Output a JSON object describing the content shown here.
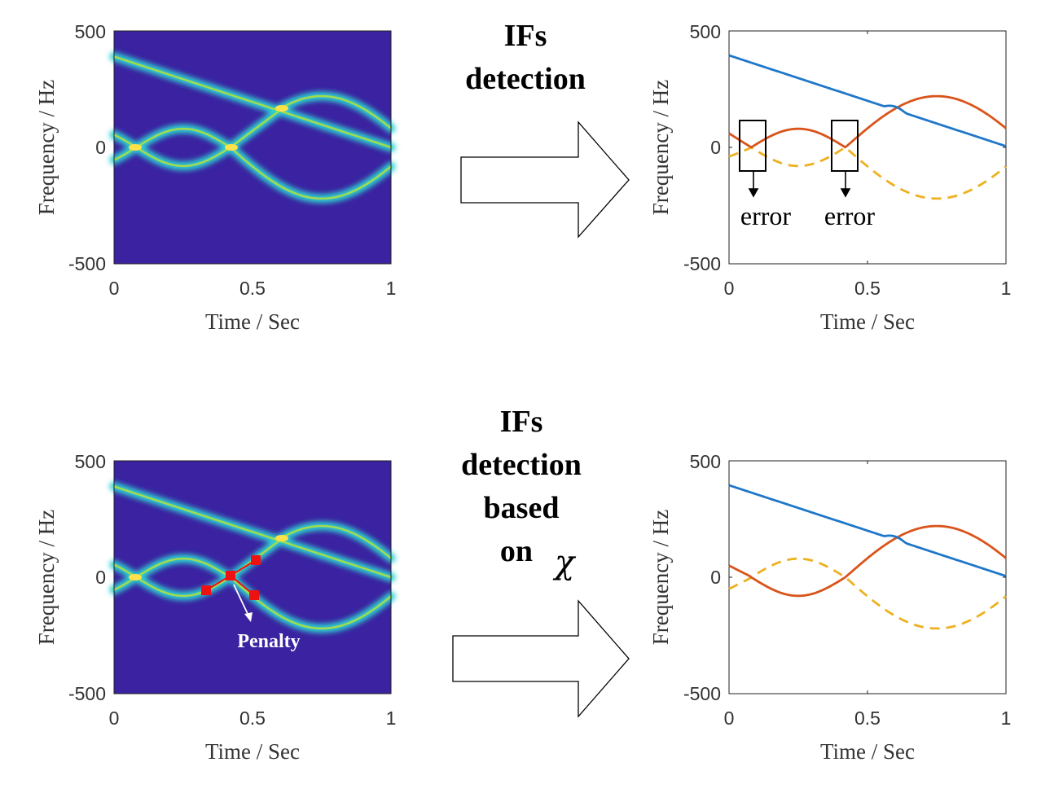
{
  "panels": [
    {
      "id": "tf-top",
      "kind": "spectrogram",
      "xlabel": "Time / Sec",
      "ylabel": "Frequency / Hz",
      "xticks": [
        "0",
        "0.5",
        "1"
      ],
      "yticks": [
        "500",
        "0",
        "-500"
      ]
    },
    {
      "id": "if-top",
      "kind": "if-estimate",
      "xlabel": "Time / Sec",
      "ylabel": "Frequency / Hz",
      "xticks": [
        "0",
        "0.5",
        "1"
      ],
      "yticks": [
        "500",
        "0",
        "-500"
      ],
      "annotations": [
        "error",
        "error"
      ]
    },
    {
      "id": "tf-bottom",
      "kind": "spectrogram",
      "xlabel": "Time / Sec",
      "ylabel": "Frequency / Hz",
      "xticks": [
        "0",
        "0.5",
        "1"
      ],
      "yticks": [
        "500",
        "0",
        "-500"
      ],
      "annotation": "Penalty"
    },
    {
      "id": "if-bottom",
      "kind": "if-estimate",
      "xlabel": "Time / Sec",
      "ylabel": "Frequency / Hz",
      "xticks": [
        "0",
        "0.5",
        "1"
      ],
      "yticks": [
        "500",
        "0",
        "-500"
      ]
    }
  ],
  "arrows": {
    "top": {
      "lines": [
        "IFs",
        "detection"
      ]
    },
    "bottom": {
      "lines": [
        "IFs",
        "detection",
        "based",
        "on"
      ],
      "symbol": "χ"
    }
  },
  "colors": {
    "background": "#3a22a0",
    "ridge": "#2ecfd0",
    "ridge_core": "#b8e03a",
    "cross": "#ffe14a",
    "series_blue": "#1f77c8",
    "series_orange": "#d9541a",
    "series_dashed": "#edb120",
    "penalty_marker": "#ee1111"
  }
}
